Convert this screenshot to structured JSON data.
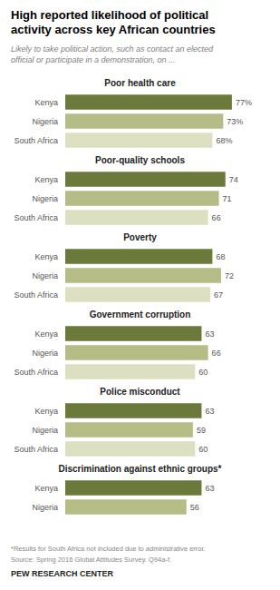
{
  "chart_data": {
    "type": "bar",
    "orientation": "horizontal",
    "title": "High reported likelihood of political\nactivity across key African countries",
    "subtitle": "Likely to take political action, such as contact an elected\nofficial or participate in a demonstration, on ...",
    "categories": [
      "Poor health care",
      "Poor-quality schools",
      "Poverty",
      "Government corruption",
      "Police misconduct",
      "Discrimination against ethnic groups*"
    ],
    "series": [
      {
        "name": "Kenya",
        "color": "#6b7a3a",
        "values": [
          77,
          74,
          68,
          63,
          63,
          63
        ],
        "value_labels": [
          "77%",
          "74",
          "68",
          "63",
          "63",
          "63"
        ]
      },
      {
        "name": "Nigeria",
        "color": "#b5bc85",
        "values": [
          73,
          71,
          72,
          66,
          59,
          56
        ],
        "value_labels": [
          "73%",
          "71",
          "72",
          "66",
          "59",
          "56"
        ]
      },
      {
        "name": "South Africa",
        "color": "#dde0c0",
        "values": [
          68,
          66,
          67,
          60,
          60,
          null
        ],
        "value_labels": [
          "68%",
          "66",
          "67",
          "60",
          "60",
          null
        ]
      }
    ],
    "xlim": [
      0,
      85
    ],
    "tick_labels": "y",
    "grid": false,
    "data_labels": true,
    "annotations": [
      "*Results for South Africa not included due to administrative error.",
      "Source: Spring 2016 Global Attitudes Survey. Q94a-f.",
      "PEW RESEARCH CENTER"
    ]
  }
}
